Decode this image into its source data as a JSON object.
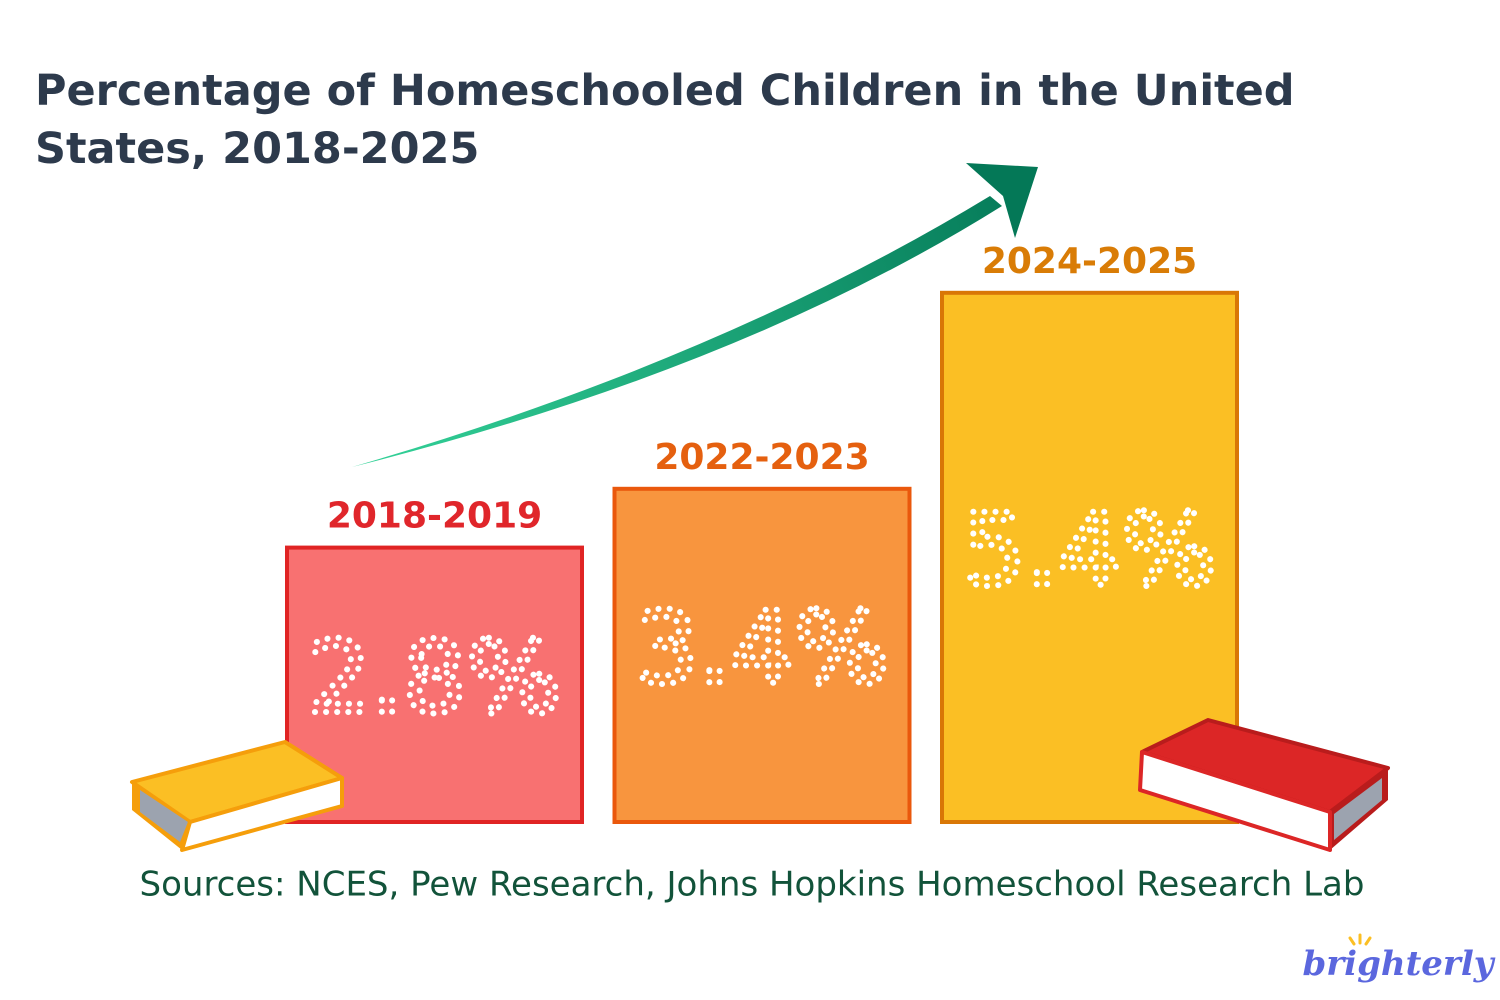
{
  "chart_data": {
    "type": "bar",
    "title": "Percentage of Homeschooled Children in the United States, 2018-2025",
    "categories": [
      "2018-2019",
      "2022-2023",
      "2024-2025"
    ],
    "values": [
      2.8,
      3.4,
      5.4
    ],
    "value_labels": [
      "2.8%",
      "3.4%",
      "5.4%"
    ],
    "colors": [
      "#f87171",
      "#f8953e",
      "#fbbf24"
    ],
    "edge_colors": [
      "#e02424",
      "#ea580c",
      "#d97706"
    ],
    "label_colors": [
      "#e0262b",
      "#e5600f",
      "#d97c06"
    ],
    "source": "Sources: NCES, Pew Research, Johns Hopkins Homeschool Research Lab",
    "logo": "brighterly"
  }
}
